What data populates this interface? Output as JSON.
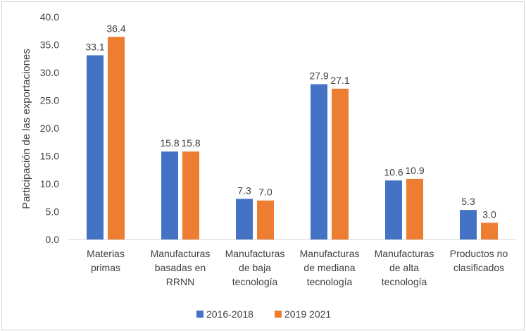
{
  "chart_data": {
    "type": "bar",
    "title": "",
    "xlabel": "",
    "ylabel": "Participación de las exportaciones",
    "ylim": [
      0,
      40
    ],
    "yticks": [
      "0.0",
      "5.0",
      "10.0",
      "15.0",
      "20.0",
      "25.0",
      "30.0",
      "35.0",
      "40.0"
    ],
    "categories": [
      [
        "Materias",
        "primas"
      ],
      [
        "Manufacturas",
        "basadas en",
        "RRNN"
      ],
      [
        "Manufacturas",
        "de baja",
        "tecnología"
      ],
      [
        "Manufacturas",
        "de mediana",
        "tecnología"
      ],
      [
        "Manufacturas",
        "de alta",
        "tecnología"
      ],
      [
        "Productos no",
        "clasificados"
      ]
    ],
    "series": [
      {
        "name": "2016-2018",
        "color": "#4472C4",
        "values": [
          33.1,
          15.8,
          7.3,
          27.9,
          10.6,
          5.3
        ],
        "labels": [
          "33.1",
          "15.8",
          "7.3",
          "27.9",
          "10.6",
          "5.3"
        ]
      },
      {
        "name": "2019 2021",
        "color": "#ED7D31",
        "values": [
          36.4,
          15.8,
          7.0,
          27.1,
          10.9,
          3.0
        ],
        "labels": [
          "36.4",
          "15.8",
          "7.0",
          "27.1",
          "10.9",
          "3.0"
        ]
      }
    ],
    "grid": false,
    "legend_position": "bottom"
  }
}
